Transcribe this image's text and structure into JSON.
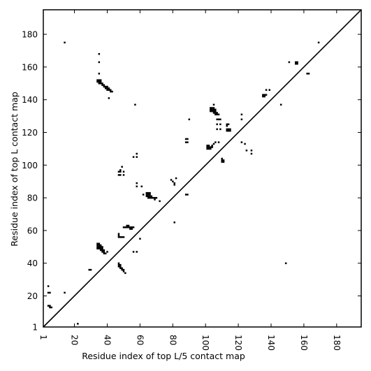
{
  "chart_data": {
    "type": "scatter",
    "title": "",
    "xlabel": "Residue index of top L/5 contact map",
    "ylabel": "Residue index of top L contact map",
    "xlim": [
      1,
      195
    ],
    "ylim": [
      1,
      195
    ],
    "xticks": [
      1,
      20,
      40,
      60,
      80,
      100,
      120,
      140,
      160,
      180
    ],
    "yticks": [
      1,
      20,
      40,
      60,
      80,
      100,
      120,
      140,
      160,
      180
    ],
    "diagonal": true,
    "grid": false,
    "marker_color": "#000000",
    "series": [
      {
        "values": [
          [
            34,
            152
          ],
          [
            35,
            152
          ],
          [
            36,
            152
          ],
          [
            34,
            151
          ],
          [
            35,
            151
          ],
          [
            36,
            151
          ],
          [
            35,
            150
          ],
          [
            36,
            150
          ],
          [
            37,
            150
          ],
          [
            37,
            149
          ],
          [
            38,
            149
          ],
          [
            38,
            148
          ],
          [
            39,
            148
          ],
          [
            40,
            148
          ],
          [
            39,
            147
          ],
          [
            40,
            147
          ],
          [
            41,
            147
          ],
          [
            40,
            146
          ],
          [
            41,
            146
          ],
          [
            42,
            146
          ],
          [
            42,
            145
          ],
          [
            43,
            145
          ],
          [
            35,
            168
          ],
          [
            35,
            163
          ],
          [
            35,
            156
          ],
          [
            41,
            141
          ],
          [
            14,
            175
          ],
          [
            57,
            137
          ],
          [
            56,
            105
          ],
          [
            58,
            105
          ],
          [
            58,
            107
          ],
          [
            58,
            89
          ],
          [
            58,
            87
          ],
          [
            61,
            87
          ],
          [
            62,
            82
          ],
          [
            64,
            83
          ],
          [
            65,
            83
          ],
          [
            66,
            83
          ],
          [
            64,
            82
          ],
          [
            65,
            82
          ],
          [
            66,
            82
          ],
          [
            64,
            81
          ],
          [
            65,
            81
          ],
          [
            66,
            81
          ],
          [
            67,
            81
          ],
          [
            65,
            80
          ],
          [
            66,
            80
          ],
          [
            67,
            80
          ],
          [
            68,
            80
          ],
          [
            69,
            80
          ],
          [
            70,
            80
          ],
          [
            69,
            79
          ],
          [
            72,
            78
          ],
          [
            81,
            65
          ],
          [
            79,
            91
          ],
          [
            80,
            90
          ],
          [
            81,
            89
          ],
          [
            81,
            88
          ],
          [
            82,
            92
          ],
          [
            88,
            82
          ],
          [
            89,
            82
          ],
          [
            88,
            116
          ],
          [
            89,
            116
          ],
          [
            88,
            114
          ],
          [
            89,
            114
          ],
          [
            90,
            128
          ],
          [
            47,
            96
          ],
          [
            48,
            96
          ],
          [
            47,
            94
          ],
          [
            48,
            94
          ],
          [
            48,
            97
          ],
          [
            49,
            99
          ],
          [
            50,
            94
          ],
          [
            50,
            96
          ],
          [
            47,
            58
          ],
          [
            47,
            57
          ],
          [
            47,
            56
          ],
          [
            48,
            56
          ],
          [
            49,
            56
          ],
          [
            50,
            56
          ],
          [
            50,
            62
          ],
          [
            51,
            62
          ],
          [
            52,
            62
          ],
          [
            52,
            63
          ],
          [
            53,
            63
          ],
          [
            53,
            62
          ],
          [
            54,
            62
          ],
          [
            54,
            61
          ],
          [
            55,
            61
          ],
          [
            55,
            62
          ],
          [
            56,
            62
          ],
          [
            56,
            47
          ],
          [
            58,
            47
          ],
          [
            60,
            55
          ],
          [
            34,
            52
          ],
          [
            35,
            52
          ],
          [
            34,
            51
          ],
          [
            35,
            51
          ],
          [
            36,
            51
          ],
          [
            34,
            50
          ],
          [
            35,
            50
          ],
          [
            36,
            50
          ],
          [
            37,
            50
          ],
          [
            34,
            49
          ],
          [
            35,
            49
          ],
          [
            36,
            49
          ],
          [
            37,
            49
          ],
          [
            36,
            48
          ],
          [
            37,
            48
          ],
          [
            38,
            48
          ],
          [
            37,
            47
          ],
          [
            38,
            47
          ],
          [
            38,
            46
          ],
          [
            39,
            46
          ],
          [
            40,
            47
          ],
          [
            47,
            40
          ],
          [
            47,
            39
          ],
          [
            48,
            39
          ],
          [
            47,
            38
          ],
          [
            48,
            38
          ],
          [
            48,
            37
          ],
          [
            49,
            37
          ],
          [
            49,
            36
          ],
          [
            50,
            36
          ],
          [
            50,
            35
          ],
          [
            51,
            34
          ],
          [
            4,
            26
          ],
          [
            4,
            22
          ],
          [
            5,
            22
          ],
          [
            14,
            22
          ],
          [
            4,
            14
          ],
          [
            5,
            14
          ],
          [
            5,
            13
          ],
          [
            6,
            13
          ],
          [
            22,
            3
          ],
          [
            29,
            36
          ],
          [
            30,
            36
          ],
          [
            103,
            135
          ],
          [
            104,
            135
          ],
          [
            105,
            135
          ],
          [
            103,
            134
          ],
          [
            104,
            134
          ],
          [
            105,
            134
          ],
          [
            106,
            134
          ],
          [
            103,
            133
          ],
          [
            104,
            133
          ],
          [
            105,
            133
          ],
          [
            106,
            133
          ],
          [
            105,
            132
          ],
          [
            106,
            132
          ],
          [
            107,
            132
          ],
          [
            106,
            131
          ],
          [
            107,
            131
          ],
          [
            108,
            131
          ],
          [
            105,
            137
          ],
          [
            107,
            128
          ],
          [
            108,
            128
          ],
          [
            109,
            128
          ],
          [
            107,
            125
          ],
          [
            109,
            125
          ],
          [
            107,
            122
          ],
          [
            109,
            122
          ],
          [
            106,
            114
          ],
          [
            108,
            114
          ],
          [
            105,
            113
          ],
          [
            101,
            112
          ],
          [
            102,
            112
          ],
          [
            101,
            111
          ],
          [
            102,
            111
          ],
          [
            103,
            111
          ],
          [
            104,
            111
          ],
          [
            101,
            110
          ],
          [
            102,
            110
          ],
          [
            103,
            110
          ],
          [
            104,
            112
          ],
          [
            110,
            104
          ],
          [
            110,
            103
          ],
          [
            111,
            103
          ],
          [
            110,
            102
          ],
          [
            111,
            102
          ],
          [
            113,
            125
          ],
          [
            114,
            125
          ],
          [
            113,
            124
          ],
          [
            113,
            122
          ],
          [
            114,
            122
          ],
          [
            115,
            122
          ],
          [
            113,
            121
          ],
          [
            114,
            121
          ],
          [
            115,
            121
          ],
          [
            122,
            131
          ],
          [
            122,
            128
          ],
          [
            122,
            114
          ],
          [
            124,
            113
          ],
          [
            125,
            109
          ],
          [
            128,
            109
          ],
          [
            128,
            107
          ],
          [
            135,
            143
          ],
          [
            136,
            143
          ],
          [
            137,
            143
          ],
          [
            135,
            142
          ],
          [
            136,
            142
          ],
          [
            137,
            146
          ],
          [
            139,
            146
          ],
          [
            146,
            137
          ],
          [
            149,
            40
          ],
          [
            151,
            163
          ],
          [
            155,
            163
          ],
          [
            156,
            163
          ],
          [
            155,
            162
          ],
          [
            156,
            162
          ],
          [
            162,
            156
          ],
          [
            163,
            156
          ],
          [
            169,
            175
          ]
        ]
      }
    ]
  }
}
